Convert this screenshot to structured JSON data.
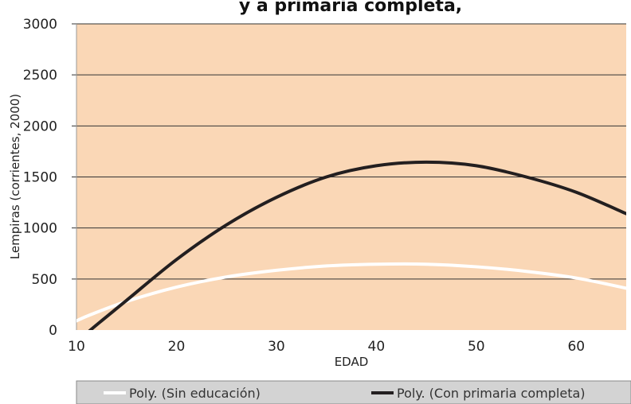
{
  "chart_data": {
    "type": "line",
    "title": "y a primaria completa,",
    "xlabel": "EDAD",
    "ylabel": "Lempiras (corrientes, 2000)",
    "xlim": [
      10,
      65
    ],
    "ylim": [
      0,
      3000
    ],
    "x_ticks": [
      10,
      20,
      30,
      40,
      50,
      60
    ],
    "y_ticks": [
      0,
      500,
      1000,
      1500,
      2000,
      2500,
      3000
    ],
    "grid": "horizontal",
    "legend_position": "bottom",
    "x": [
      10,
      11.4,
      15,
      20,
      25,
      30,
      35,
      40,
      45,
      50,
      55,
      60,
      65
    ],
    "series": [
      {
        "name": "Poly. (Sin educación)",
        "color": "#ffffff",
        "values": [
          90,
          150,
          280,
          420,
          520,
          585,
          628,
          645,
          645,
          620,
          575,
          510,
          410
        ]
      },
      {
        "name": "Poly. (Con primaria completa)",
        "color": "#231f20",
        "values": [
          -130,
          0,
          290,
          690,
          1030,
          1300,
          1500,
          1610,
          1645,
          1610,
          1500,
          1350,
          1140
        ]
      }
    ],
    "colors": {
      "plot_background": "#fad7b6",
      "gridline": "#333333",
      "legend_background": "#d3d3d3"
    }
  }
}
